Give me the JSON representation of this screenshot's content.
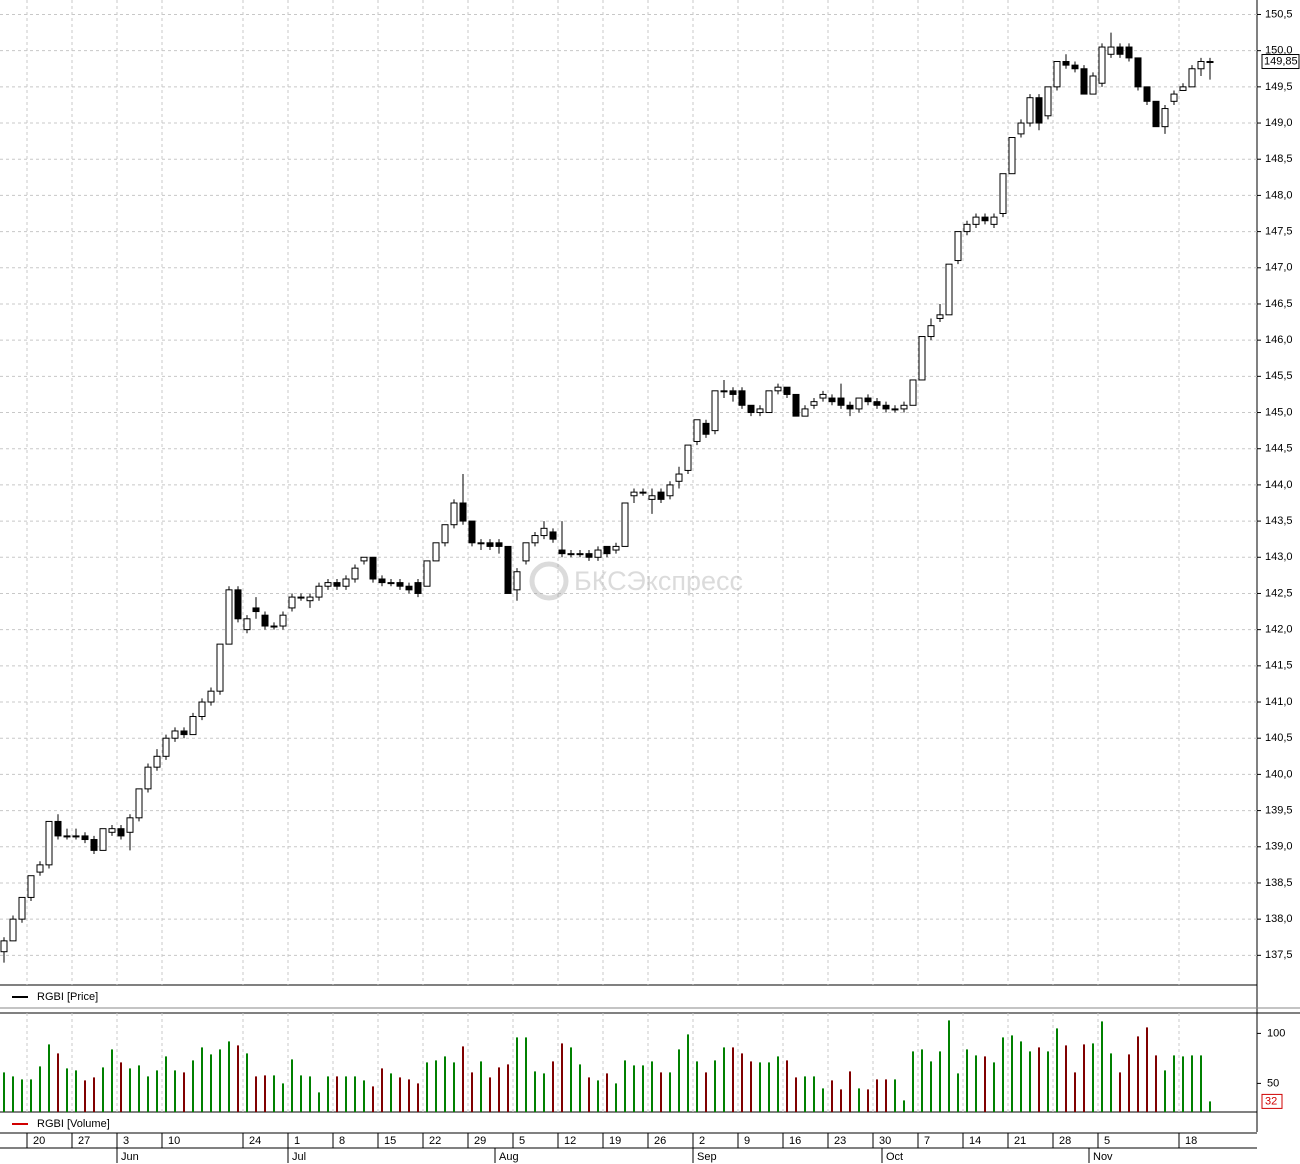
{
  "chart_data": {
    "type": "candlestick",
    "legend_price": "RGBI [Price]",
    "legend_volume": "RGBI [Volume]",
    "watermark": "БКСЭкспресс",
    "categories": [
      null,
      null,
      null,
      "20",
      null,
      null,
      null,
      null,
      "27",
      null,
      null,
      null,
      null,
      "3",
      null,
      null,
      null,
      null,
      "10",
      null,
      null,
      null,
      null,
      null,
      null,
      null,
      null,
      "24",
      null,
      null,
      null,
      null,
      "1",
      null,
      null,
      null,
      null,
      "8",
      null,
      null,
      null,
      null,
      "15",
      null,
      null,
      null,
      null,
      "22",
      null,
      null,
      null,
      null,
      "29",
      null,
      null,
      null,
      null,
      "5",
      null,
      null,
      null,
      null,
      "12",
      null,
      null,
      null,
      null,
      "19",
      null,
      null,
      null,
      null,
      "26",
      null,
      null,
      null,
      null,
      "2",
      null,
      null,
      null,
      null,
      "9",
      null,
      null,
      null,
      null,
      "16",
      null,
      null,
      null,
      null,
      "23",
      null,
      null,
      null,
      null,
      "30",
      null,
      null,
      null,
      null,
      "7",
      null,
      null,
      null,
      null,
      "14",
      null,
      null,
      null,
      null,
      "21",
      null,
      null,
      null,
      null,
      "28",
      null,
      null,
      null,
      null,
      "5",
      null,
      null,
      null,
      null,
      null,
      null,
      null,
      null,
      "18",
      null,
      null,
      null
    ],
    "months": [
      null,
      null,
      null,
      null,
      null,
      null,
      null,
      null,
      null,
      null,
      null,
      null,
      null,
      "Jun",
      null,
      null,
      null,
      null,
      null,
      null,
      null,
      null,
      null,
      null,
      null,
      null,
      null,
      null,
      null,
      null,
      null,
      null,
      "Jul",
      null,
      null,
      null,
      null,
      null,
      null,
      null,
      null,
      null,
      null,
      null,
      null,
      null,
      null,
      null,
      null,
      null,
      null,
      null,
      null,
      null,
      null,
      "Aug",
      null,
      null,
      null,
      null,
      null,
      null,
      null,
      null,
      null,
      null,
      null,
      null,
      null,
      null,
      null,
      null,
      null,
      null,
      null,
      null,
      null,
      "Sep",
      null,
      null,
      null,
      null,
      null,
      null,
      null,
      null,
      null,
      null,
      null,
      null,
      null,
      null,
      null,
      null,
      null,
      null,
      null,
      null,
      "Oct",
      null,
      null,
      null,
      null,
      null,
      null,
      null,
      null,
      null,
      null,
      null,
      null,
      null,
      null,
      null,
      null,
      null,
      null,
      null,
      null,
      null,
      null,
      "Nov",
      null,
      null,
      null,
      null,
      null,
      null,
      null,
      null,
      null,
      null,
      null,
      null,
      null
    ],
    "open": [
      137.55,
      137.7,
      138.0,
      138.3,
      138.65,
      138.75,
      139.35,
      139.15,
      139.15,
      139.15,
      139.1,
      138.95,
      139.2,
      139.25,
      139.2,
      139.4,
      139.8,
      140.1,
      140.25,
      140.5,
      140.6,
      140.55,
      140.8,
      141.0,
      141.15,
      141.8,
      142.55,
      142.0,
      142.3,
      142.2,
      142.05,
      142.05,
      142.3,
      142.45,
      142.4,
      142.45,
      142.6,
      142.65,
      142.6,
      142.7,
      142.95,
      143.0,
      142.7,
      142.65,
      142.65,
      142.6,
      142.65,
      142.6,
      142.95,
      143.2,
      143.45,
      143.75,
      143.5,
      143.2,
      143.2,
      143.2,
      143.15,
      142.55,
      142.95,
      143.2,
      143.3,
      143.35,
      143.1,
      143.05,
      143.05,
      143.05,
      143.0,
      143.15,
      143.1,
      143.15,
      143.85,
      143.9,
      143.8,
      143.9,
      143.85,
      144.05,
      144.2,
      144.6,
      144.85,
      144.75,
      145.3,
      145.3,
      145.3,
      145.1,
      145.0,
      145.0,
      145.3,
      145.35,
      145.25,
      144.95,
      145.1,
      145.2,
      145.2,
      145.2,
      145.1,
      145.05,
      145.2,
      145.15,
      145.1,
      145.05,
      145.05,
      145.1,
      145.45,
      146.05,
      146.3,
      146.35,
      147.1,
      147.5,
      147.6,
      147.7,
      147.6,
      147.75,
      148.3,
      148.85,
      149.0,
      149.35,
      149.1,
      149.5,
      149.85,
      149.8,
      149.75,
      149.4,
      149.55,
      149.95,
      150.05,
      150.05,
      149.9,
      149.5,
      149.3,
      148.95,
      149.3,
      149.45,
      149.5,
      149.75,
      149.85
    ],
    "high": [
      137.75,
      138.05,
      138.3,
      138.6,
      138.8,
      139.35,
      139.45,
      139.25,
      139.25,
      139.2,
      139.15,
      139.25,
      139.3,
      139.3,
      139.45,
      139.8,
      140.15,
      140.35,
      140.55,
      140.65,
      140.65,
      140.85,
      141.05,
      141.2,
      141.8,
      142.6,
      142.6,
      142.2,
      142.45,
      142.25,
      142.1,
      142.25,
      142.5,
      142.5,
      142.5,
      142.65,
      142.7,
      142.7,
      142.75,
      142.9,
      143.0,
      143.0,
      142.75,
      142.7,
      142.7,
      142.65,
      142.7,
      142.95,
      143.2,
      143.45,
      143.8,
      144.15,
      143.5,
      143.25,
      143.25,
      143.25,
      143.15,
      142.85,
      143.2,
      143.35,
      143.5,
      143.4,
      143.5,
      143.1,
      143.1,
      143.1,
      143.15,
      143.15,
      143.2,
      143.75,
      143.95,
      143.95,
      143.95,
      143.95,
      144.05,
      144.25,
      144.55,
      144.9,
      144.9,
      145.3,
      145.45,
      145.35,
      145.35,
      145.1,
      145.1,
      145.3,
      145.4,
      145.35,
      145.25,
      145.1,
      145.2,
      145.3,
      145.25,
      145.4,
      145.15,
      145.2,
      145.25,
      145.2,
      145.15,
      145.1,
      145.15,
      145.45,
      146.05,
      146.3,
      146.5,
      147.05,
      147.5,
      147.65,
      147.75,
      147.75,
      147.75,
      148.3,
      148.8,
      149.05,
      149.4,
      149.4,
      149.5,
      149.85,
      149.95,
      149.85,
      149.8,
      149.7,
      150.1,
      150.25,
      150.1,
      150.1,
      149.9,
      149.5,
      149.3,
      149.25,
      149.45,
      149.55,
      149.8,
      149.9,
      149.9
    ],
    "low": [
      137.4,
      137.7,
      137.95,
      138.25,
      138.6,
      138.7,
      139.1,
      139.1,
      139.1,
      139.05,
      138.9,
      138.95,
      139.15,
      139.1,
      138.95,
      139.35,
      139.75,
      140.05,
      140.2,
      140.45,
      140.5,
      140.55,
      140.75,
      140.95,
      141.1,
      141.8,
      142.1,
      141.95,
      142.15,
      142.0,
      142.0,
      142.0,
      142.25,
      142.4,
      142.3,
      142.4,
      142.55,
      142.55,
      142.55,
      142.65,
      142.9,
      142.65,
      142.6,
      142.6,
      142.55,
      142.5,
      142.45,
      142.6,
      142.95,
      143.15,
      143.4,
      143.45,
      143.15,
      143.1,
      143.1,
      143.05,
      142.5,
      142.4,
      142.9,
      143.15,
      143.25,
      143.2,
      143.0,
      143.0,
      143.0,
      142.95,
      142.95,
      143.0,
      143.05,
      143.15,
      143.75,
      143.85,
      143.6,
      143.75,
      143.8,
      143.95,
      144.15,
      144.55,
      144.65,
      144.7,
      145.2,
      145.15,
      145.05,
      144.95,
      144.95,
      145.0,
      145.25,
      145.2,
      144.95,
      144.95,
      145.05,
      145.15,
      145.1,
      145.05,
      144.95,
      145.0,
      145.1,
      145.05,
      145.0,
      145.0,
      145.0,
      145.1,
      145.45,
      146.0,
      146.25,
      146.35,
      147.05,
      147.45,
      147.55,
      147.6,
      147.55,
      147.7,
      148.3,
      148.8,
      148.95,
      148.9,
      149.05,
      149.45,
      149.75,
      149.7,
      149.4,
      149.4,
      149.5,
      149.9,
      149.9,
      149.85,
      149.45,
      149.25,
      148.95,
      148.85,
      149.25,
      149.45,
      149.5,
      149.65,
      149.6
    ],
    "close": [
      137.7,
      138.0,
      138.3,
      138.6,
      138.75,
      139.35,
      139.15,
      139.15,
      139.15,
      139.1,
      138.95,
      139.25,
      139.25,
      139.15,
      139.4,
      139.8,
      140.1,
      140.25,
      140.5,
      140.6,
      140.55,
      140.8,
      141.0,
      141.15,
      141.8,
      142.55,
      142.15,
      142.15,
      142.25,
      142.05,
      142.05,
      142.2,
      142.45,
      142.45,
      142.45,
      142.6,
      142.65,
      142.6,
      142.7,
      142.85,
      143.0,
      142.7,
      142.65,
      142.65,
      142.6,
      142.55,
      142.5,
      142.95,
      143.2,
      143.45,
      143.75,
      143.5,
      143.2,
      143.2,
      143.15,
      143.15,
      142.5,
      142.8,
      143.2,
      143.3,
      143.4,
      143.25,
      143.05,
      143.05,
      143.05,
      143.0,
      143.1,
      143.05,
      143.15,
      143.75,
      143.9,
      143.9,
      143.85,
      143.8,
      144.0,
      144.15,
      144.55,
      144.9,
      144.7,
      145.3,
      145.3,
      145.25,
      145.1,
      145.0,
      145.05,
      145.3,
      145.35,
      145.25,
      144.95,
      145.05,
      145.15,
      145.25,
      145.15,
      145.1,
      145.05,
      145.2,
      145.15,
      145.1,
      145.05,
      145.05,
      145.1,
      145.45,
      146.05,
      146.2,
      146.35,
      147.05,
      147.5,
      147.6,
      147.7,
      147.65,
      147.7,
      148.3,
      148.8,
      149.0,
      149.35,
      149.0,
      149.5,
      149.85,
      149.8,
      149.75,
      149.4,
      149.65,
      150.05,
      150.05,
      149.95,
      149.9,
      149.5,
      149.3,
      148.95,
      149.2,
      149.4,
      149.5,
      149.75,
      149.85,
      149.85
    ],
    "up_color": "#000000",
    "down_color": "#000000",
    "ylim": [
      137.09,
      150.7
    ],
    "yticks": [
      {
        "value": 137.5,
        "label": "137,5"
      },
      {
        "value": 138,
        "label": "138,0"
      },
      {
        "value": 138.5,
        "label": "138,5"
      },
      {
        "value": 139,
        "label": "139,0"
      },
      {
        "value": 139.5,
        "label": "139,5"
      },
      {
        "value": 140,
        "label": "140,0"
      },
      {
        "value": 140.5,
        "label": "140,5"
      },
      {
        "value": 141,
        "label": "141,0"
      },
      {
        "value": 141.5,
        "label": "141,5"
      },
      {
        "value": 142,
        "label": "142,0"
      },
      {
        "value": 142.5,
        "label": "142,5"
      },
      {
        "value": 143,
        "label": "143,0"
      },
      {
        "value": 143.5,
        "label": "143,5"
      },
      {
        "value": 144,
        "label": "144,0"
      },
      {
        "value": 144.5,
        "label": "144,5"
      },
      {
        "value": 145,
        "label": "145,0"
      },
      {
        "value": 145.5,
        "label": "145,5"
      },
      {
        "value": 146,
        "label": "146,0"
      },
      {
        "value": 146.5,
        "label": "146,5"
      },
      {
        "value": 147,
        "label": "147,0"
      },
      {
        "value": 147.5,
        "label": "147,5"
      },
      {
        "value": 148,
        "label": "148,0"
      },
      {
        "value": 148.5,
        "label": "148,5"
      },
      {
        "value": 149,
        "label": "149,0"
      },
      {
        "value": 149.5,
        "label": "149,5"
      },
      {
        "value": 150,
        "label": "150,0"
      },
      {
        "value": 150.5,
        "label": "150,5"
      }
    ],
    "last_price": {
      "value": 149.85,
      "label": "149,85"
    },
    "volume": [
      61,
      57,
      54,
      54,
      67,
      89,
      80,
      65,
      63,
      53,
      56,
      66,
      84,
      71,
      65,
      68,
      57,
      63,
      77,
      63,
      61,
      73,
      86,
      79,
      84,
      92,
      88,
      80,
      57,
      58,
      58,
      50,
      74,
      58,
      57,
      41,
      57,
      57,
      57,
      57,
      53,
      47,
      65,
      60,
      56,
      54,
      50,
      71,
      73,
      77,
      71,
      87,
      61,
      72,
      56,
      66,
      69,
      96,
      96,
      62,
      60,
      72,
      90,
      86,
      69,
      56,
      53,
      60,
      50,
      73,
      68,
      68,
      72,
      61,
      61,
      84,
      99,
      72,
      61,
      73,
      86,
      86,
      80,
      72,
      71,
      71,
      77,
      73,
      56,
      57,
      57,
      45,
      53,
      44,
      62,
      45,
      44,
      54,
      54,
      54,
      33,
      82,
      84,
      72,
      82,
      113,
      60,
      84,
      78,
      77,
      71,
      96,
      98,
      92,
      82,
      86,
      82,
      105,
      88,
      61,
      89,
      90,
      112,
      80,
      61,
      79,
      97,
      106,
      78,
      63,
      78,
      77,
      78,
      78,
      32
    ],
    "volume_up_color": "#008000",
    "volume_down_color": "#800000",
    "volume_ylim": [
      21.4,
      120.4
    ],
    "volume_yticks": [
      50,
      100
    ],
    "last_volume": 32,
    "grid": true
  }
}
